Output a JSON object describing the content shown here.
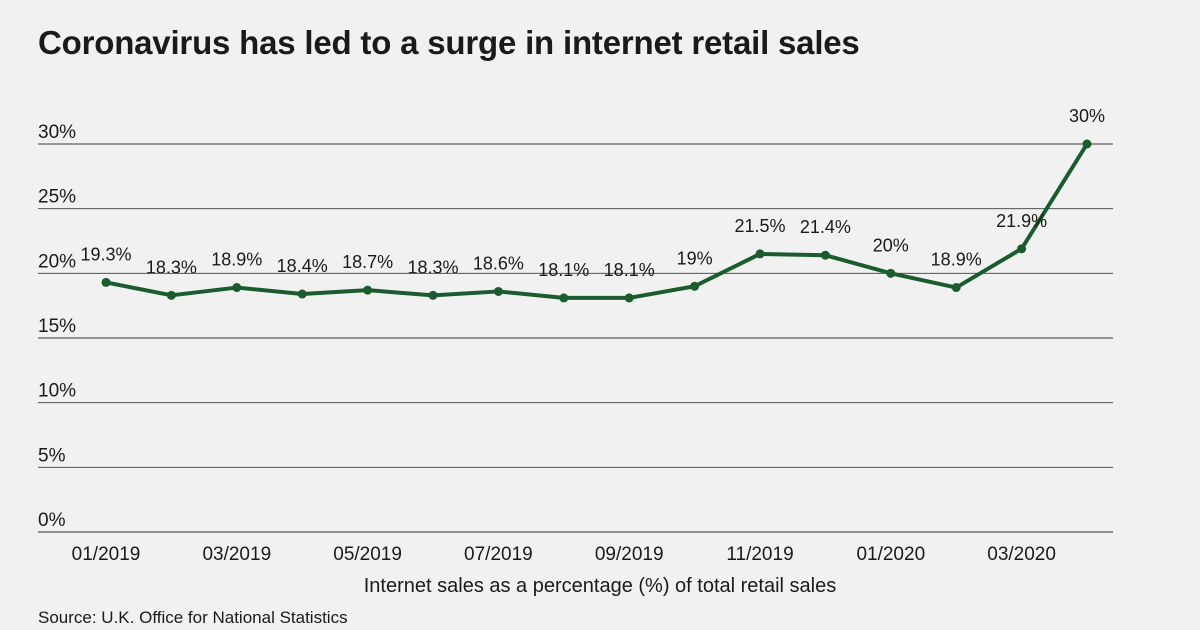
{
  "chart_data": {
    "type": "line",
    "title": "Coronavirus has led to a surge in internet retail sales",
    "xlabel": "Internet sales as a percentage (%) of total retail sales",
    "ylabel": "",
    "source": "Source: U.K. Office for National Statistics",
    "ylim": [
      0,
      30
    ],
    "yticks": [
      "0%",
      "5%",
      "10%",
      "15%",
      "20%",
      "25%",
      "30%"
    ],
    "ytick_values": [
      0,
      5,
      10,
      15,
      20,
      25,
      30
    ],
    "xtick_labels": [
      "01/2019",
      "03/2019",
      "05/2019",
      "07/2019",
      "09/2019",
      "11/2019",
      "01/2020",
      "03/2020"
    ],
    "xtick_indices": [
      0,
      2,
      4,
      6,
      8,
      10,
      12,
      14
    ],
    "categories": [
      "01/2019",
      "02/2019",
      "03/2019",
      "04/2019",
      "05/2019",
      "06/2019",
      "07/2019",
      "08/2019",
      "09/2019",
      "10/2019",
      "11/2019",
      "12/2019",
      "01/2020",
      "02/2020",
      "03/2020",
      "04/2020"
    ],
    "series": [
      {
        "values": [
          19.3,
          18.3,
          18.9,
          18.4,
          18.7,
          18.3,
          18.6,
          18.1,
          18.1,
          19,
          21.5,
          21.4,
          20,
          18.9,
          21.9,
          30
        ],
        "labels": [
          "19.3%",
          "18.3%",
          "18.9%",
          "18.4%",
          "18.7%",
          "18.3%",
          "18.6%",
          "18.1%",
          "18.1%",
          "19%",
          "21.5%",
          "21.4%",
          "20%",
          "18.9%",
          "21.9%",
          "30%"
        ]
      }
    ],
    "line_color": "#1a5c2e",
    "grid": "horizontal",
    "grid_color": "#3a3a3a"
  }
}
